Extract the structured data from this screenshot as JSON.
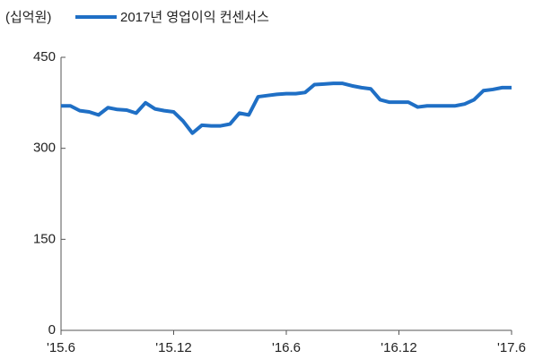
{
  "chart_data": {
    "type": "line",
    "y_unit_label": "(십억원)",
    "categories": [
      "'15.6",
      null,
      null,
      null,
      null,
      null,
      null,
      null,
      null,
      null,
      null,
      null,
      "'15.12",
      null,
      null,
      null,
      null,
      null,
      null,
      null,
      null,
      null,
      null,
      null,
      "'16.6",
      null,
      null,
      null,
      null,
      null,
      null,
      null,
      null,
      null,
      null,
      null,
      "'16.12",
      null,
      null,
      null,
      null,
      null,
      null,
      null,
      null,
      null,
      null,
      null,
      "'17.6"
    ],
    "series": [
      {
        "name": "2017년 영업이익 컨센서스",
        "color": "#1f6fc5",
        "values": [
          370,
          370,
          362,
          360,
          355,
          367,
          364,
          363,
          358,
          375,
          365,
          362,
          360,
          345,
          325,
          338,
          337,
          337,
          340,
          358,
          355,
          385,
          387,
          389,
          390,
          390,
          392,
          405,
          406,
          407,
          407,
          403,
          400,
          398,
          380,
          376,
          376,
          376,
          368,
          370,
          370,
          370,
          370,
          373,
          380,
          395,
          397,
          400,
          400
        ]
      }
    ],
    "ylim": [
      0,
      450
    ],
    "yticks": [
      0,
      150,
      300,
      450
    ]
  }
}
